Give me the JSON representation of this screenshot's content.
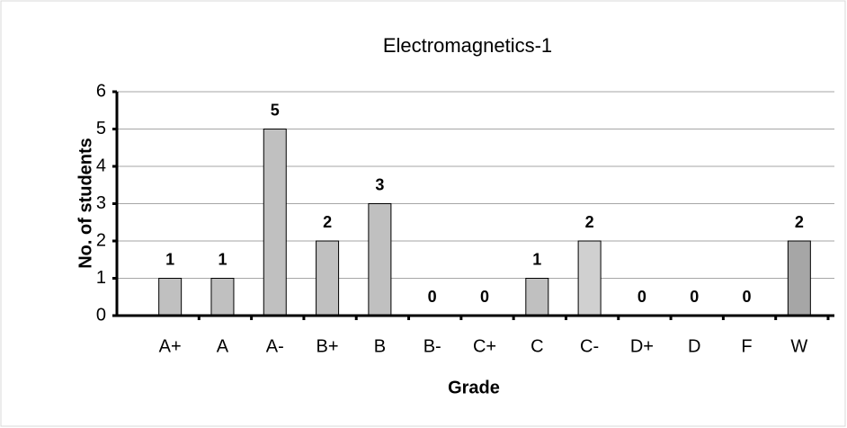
{
  "chart_data": {
    "type": "bar",
    "title": "Electromagnetics-1",
    "x_label": "Grade",
    "y_label": "No. of students",
    "categories": [
      "A+",
      "A",
      "A-",
      "B+",
      "B",
      "B-",
      "C+",
      "C",
      "C-",
      "D+",
      "D",
      "F",
      "W"
    ],
    "values": [
      1,
      1,
      5,
      2,
      3,
      0,
      0,
      1,
      2,
      0,
      0,
      0,
      2
    ],
    "colors": [
      "#c0c0c0",
      "#c0c0c0",
      "#c0c0c0",
      "#c0c0c0",
      "#c0c0c0",
      "#c0c0c0",
      "#c0c0c0",
      "#c0c0c0",
      "#d0d0d0",
      "#c0c0c0",
      "#c0c0c0",
      "#c0c0c0",
      "#a6a6a6"
    ],
    "ylim": [
      0,
      6
    ],
    "yticks": [
      0,
      1,
      2,
      3,
      4,
      5,
      6
    ],
    "grid": true
  }
}
